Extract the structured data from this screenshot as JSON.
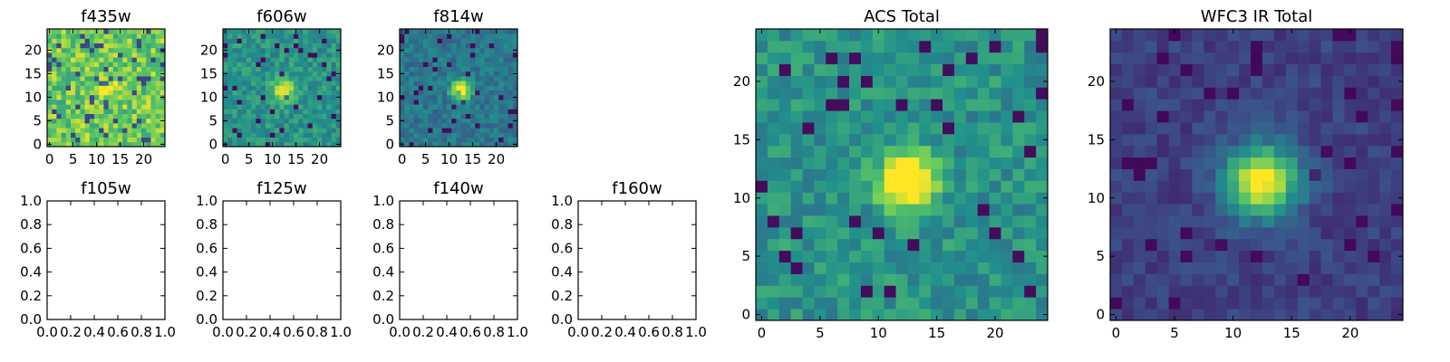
{
  "chart_data": [
    {
      "type": "heatmap",
      "title": "f435w",
      "pattern": "noise_bright",
      "seed": 11,
      "peak": 0.2,
      "xticks": [
        "0",
        "5",
        "10",
        "15",
        "20"
      ],
      "yticks": [
        "0",
        "5",
        "10",
        "15",
        "20"
      ],
      "xlim": [
        -0.5,
        24.5
      ],
      "ylim": [
        -0.5,
        24.5
      ]
    },
    {
      "type": "heatmap",
      "title": "f606w",
      "pattern": "noise_source",
      "seed": 23,
      "peak": 0.55,
      "xticks": [
        "0",
        "5",
        "10",
        "15",
        "20"
      ],
      "yticks": [
        "0",
        "5",
        "10",
        "15",
        "20"
      ],
      "xlim": [
        -0.5,
        24.5
      ],
      "ylim": [
        -0.5,
        24.5
      ]
    },
    {
      "type": "heatmap",
      "title": "f814w",
      "pattern": "noise_source_dark",
      "seed": 37,
      "peak": 0.75,
      "xticks": [
        "0",
        "5",
        "10",
        "15",
        "20"
      ],
      "yticks": [
        "0",
        "5",
        "10",
        "15",
        "20"
      ],
      "xlim": [
        -0.5,
        24.5
      ],
      "ylim": [
        -0.5,
        24.5
      ]
    },
    {
      "type": "empty",
      "title": "f105w",
      "xticks": [
        "0.0",
        "0.2",
        "0.4",
        "0.6",
        "0.8",
        "1.0"
      ],
      "yticks": [
        "0.0",
        "0.2",
        "0.4",
        "0.6",
        "0.8",
        "1.0"
      ],
      "xlim": [
        0,
        1
      ],
      "ylim": [
        0,
        1
      ]
    },
    {
      "type": "empty",
      "title": "f125w",
      "xticks": [
        "0.0",
        "0.2",
        "0.4",
        "0.6",
        "0.8",
        "1.0"
      ],
      "yticks": [
        "0.0",
        "0.2",
        "0.4",
        "0.6",
        "0.8",
        "1.0"
      ],
      "xlim": [
        0,
        1
      ],
      "ylim": [
        0,
        1
      ]
    },
    {
      "type": "empty",
      "title": "f140w",
      "xticks": [
        "0.0",
        "0.2",
        "0.4",
        "0.6",
        "0.8",
        "1.0"
      ],
      "yticks": [
        "0.0",
        "0.2",
        "0.4",
        "0.6",
        "0.8",
        "1.0"
      ],
      "xlim": [
        0,
        1
      ],
      "ylim": [
        0,
        1
      ]
    },
    {
      "type": "empty",
      "title": "f160w",
      "xticks": [
        "0.0",
        "0.2",
        "0.4",
        "0.6",
        "0.8",
        "1.0"
      ],
      "yticks": [
        "0.0",
        "0.2",
        "0.4",
        "0.6",
        "0.8",
        "1.0"
      ],
      "xlim": [
        0,
        1
      ],
      "ylim": [
        0,
        1
      ]
    },
    {
      "type": "heatmap",
      "title": "ACS Total",
      "pattern": "noise_source",
      "seed": 53,
      "peak": 0.9,
      "xticks": [
        "0",
        "5",
        "10",
        "15",
        "20"
      ],
      "yticks": [
        "0",
        "5",
        "10",
        "15",
        "20"
      ],
      "xlim": [
        -0.5,
        24.5
      ],
      "ylim": [
        -0.5,
        24.5
      ]
    },
    {
      "type": "heatmap",
      "title": "WFC3 IR Total",
      "pattern": "smooth_source",
      "seed": 71,
      "peak": 1.0,
      "xticks": [
        "0",
        "5",
        "10",
        "15",
        "20"
      ],
      "yticks": [
        "0",
        "5",
        "10",
        "15",
        "20"
      ],
      "xlim": [
        -0.5,
        24.5
      ],
      "ylim": [
        -0.5,
        24.5
      ]
    }
  ],
  "source_center": [
    12.5,
    11.5
  ],
  "grid_size": 25,
  "colormap": [
    "#440154",
    "#3b528b",
    "#21918c",
    "#5ec962",
    "#fde725"
  ]
}
